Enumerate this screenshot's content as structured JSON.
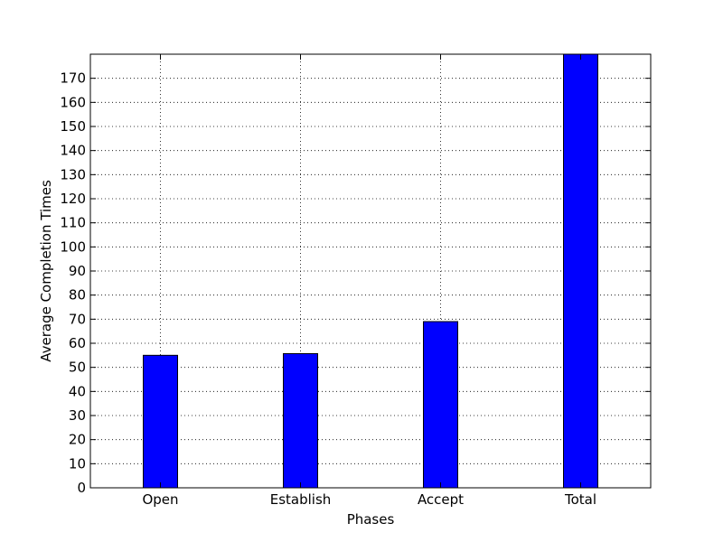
{
  "chart_data": {
    "type": "bar",
    "categories": [
      "Open",
      "Establish",
      "Accept",
      "Total"
    ],
    "values": [
      55,
      55.7,
      69,
      180
    ],
    "xlabel": "Phases",
    "ylabel": "Average Completion Times",
    "ylim": [
      0,
      180
    ],
    "yticks": [
      0,
      10,
      20,
      30,
      40,
      50,
      60,
      70,
      80,
      90,
      100,
      110,
      120,
      130,
      140,
      150,
      160,
      170
    ],
    "grid": true,
    "bar_color": "#0000ff",
    "edge_color": "#000000"
  }
}
